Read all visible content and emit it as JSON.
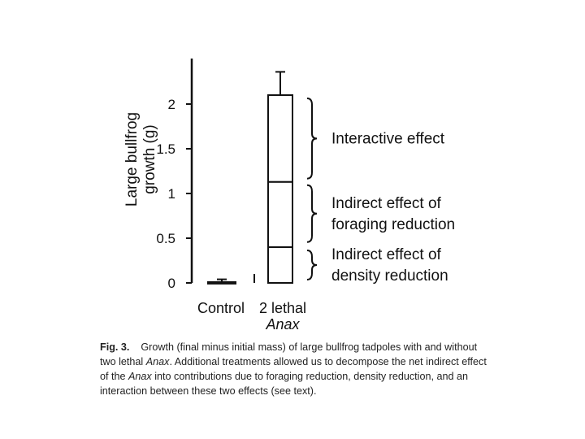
{
  "chart_data": {
    "type": "bar",
    "categories": [
      "Control",
      "2 lethal Anax"
    ],
    "category_lines": [
      [
        "Control"
      ],
      [
        "2 lethal",
        "Anax"
      ]
    ],
    "series": [
      {
        "name": "Indirect effect of density reduction",
        "values": [
          0.01,
          0.4
        ]
      },
      {
        "name": "Indirect effect of foraging reduction",
        "values": [
          0.0,
          0.73
        ]
      },
      {
        "name": "Interactive effect",
        "values": [
          0.0,
          0.97
        ]
      }
    ],
    "totals": [
      0.01,
      2.1
    ],
    "error_bar_upper": [
      0.04,
      2.36
    ],
    "ylabel_lines": [
      "Large bullfrog",
      "growth (g)"
    ],
    "ytick_labels": [
      "0",
      "0.5",
      "1",
      "1.5",
      "2"
    ],
    "yticks": [
      0,
      0.5,
      1,
      1.5,
      2
    ],
    "ylim": [
      0,
      2.5
    ],
    "annotations": [
      {
        "lines": [
          "Interactive effect"
        ],
        "y_range": [
          1.13,
          2.1
        ]
      },
      {
        "lines": [
          "Indirect effect of",
          "foraging reduction"
        ],
        "y_range": [
          0.42,
          1.13
        ]
      },
      {
        "lines": [
          "Indirect effect of",
          "density reduction"
        ],
        "y_range": [
          0.0,
          0.4
        ]
      }
    ]
  },
  "caption": {
    "label": "Fig. 3.",
    "text_1": "Growth (final minus initial mass) of large bullfrog tadpoles with and without two lethal",
    "italic_1": "Anax",
    "text_2": ". Additional treatments allowed us to decompose the net indirect effect of the",
    "italic_2": "Anax",
    "text_3": "into contributions due to foraging reduction, density reduction, and an interaction between these two effects (see text)."
  }
}
